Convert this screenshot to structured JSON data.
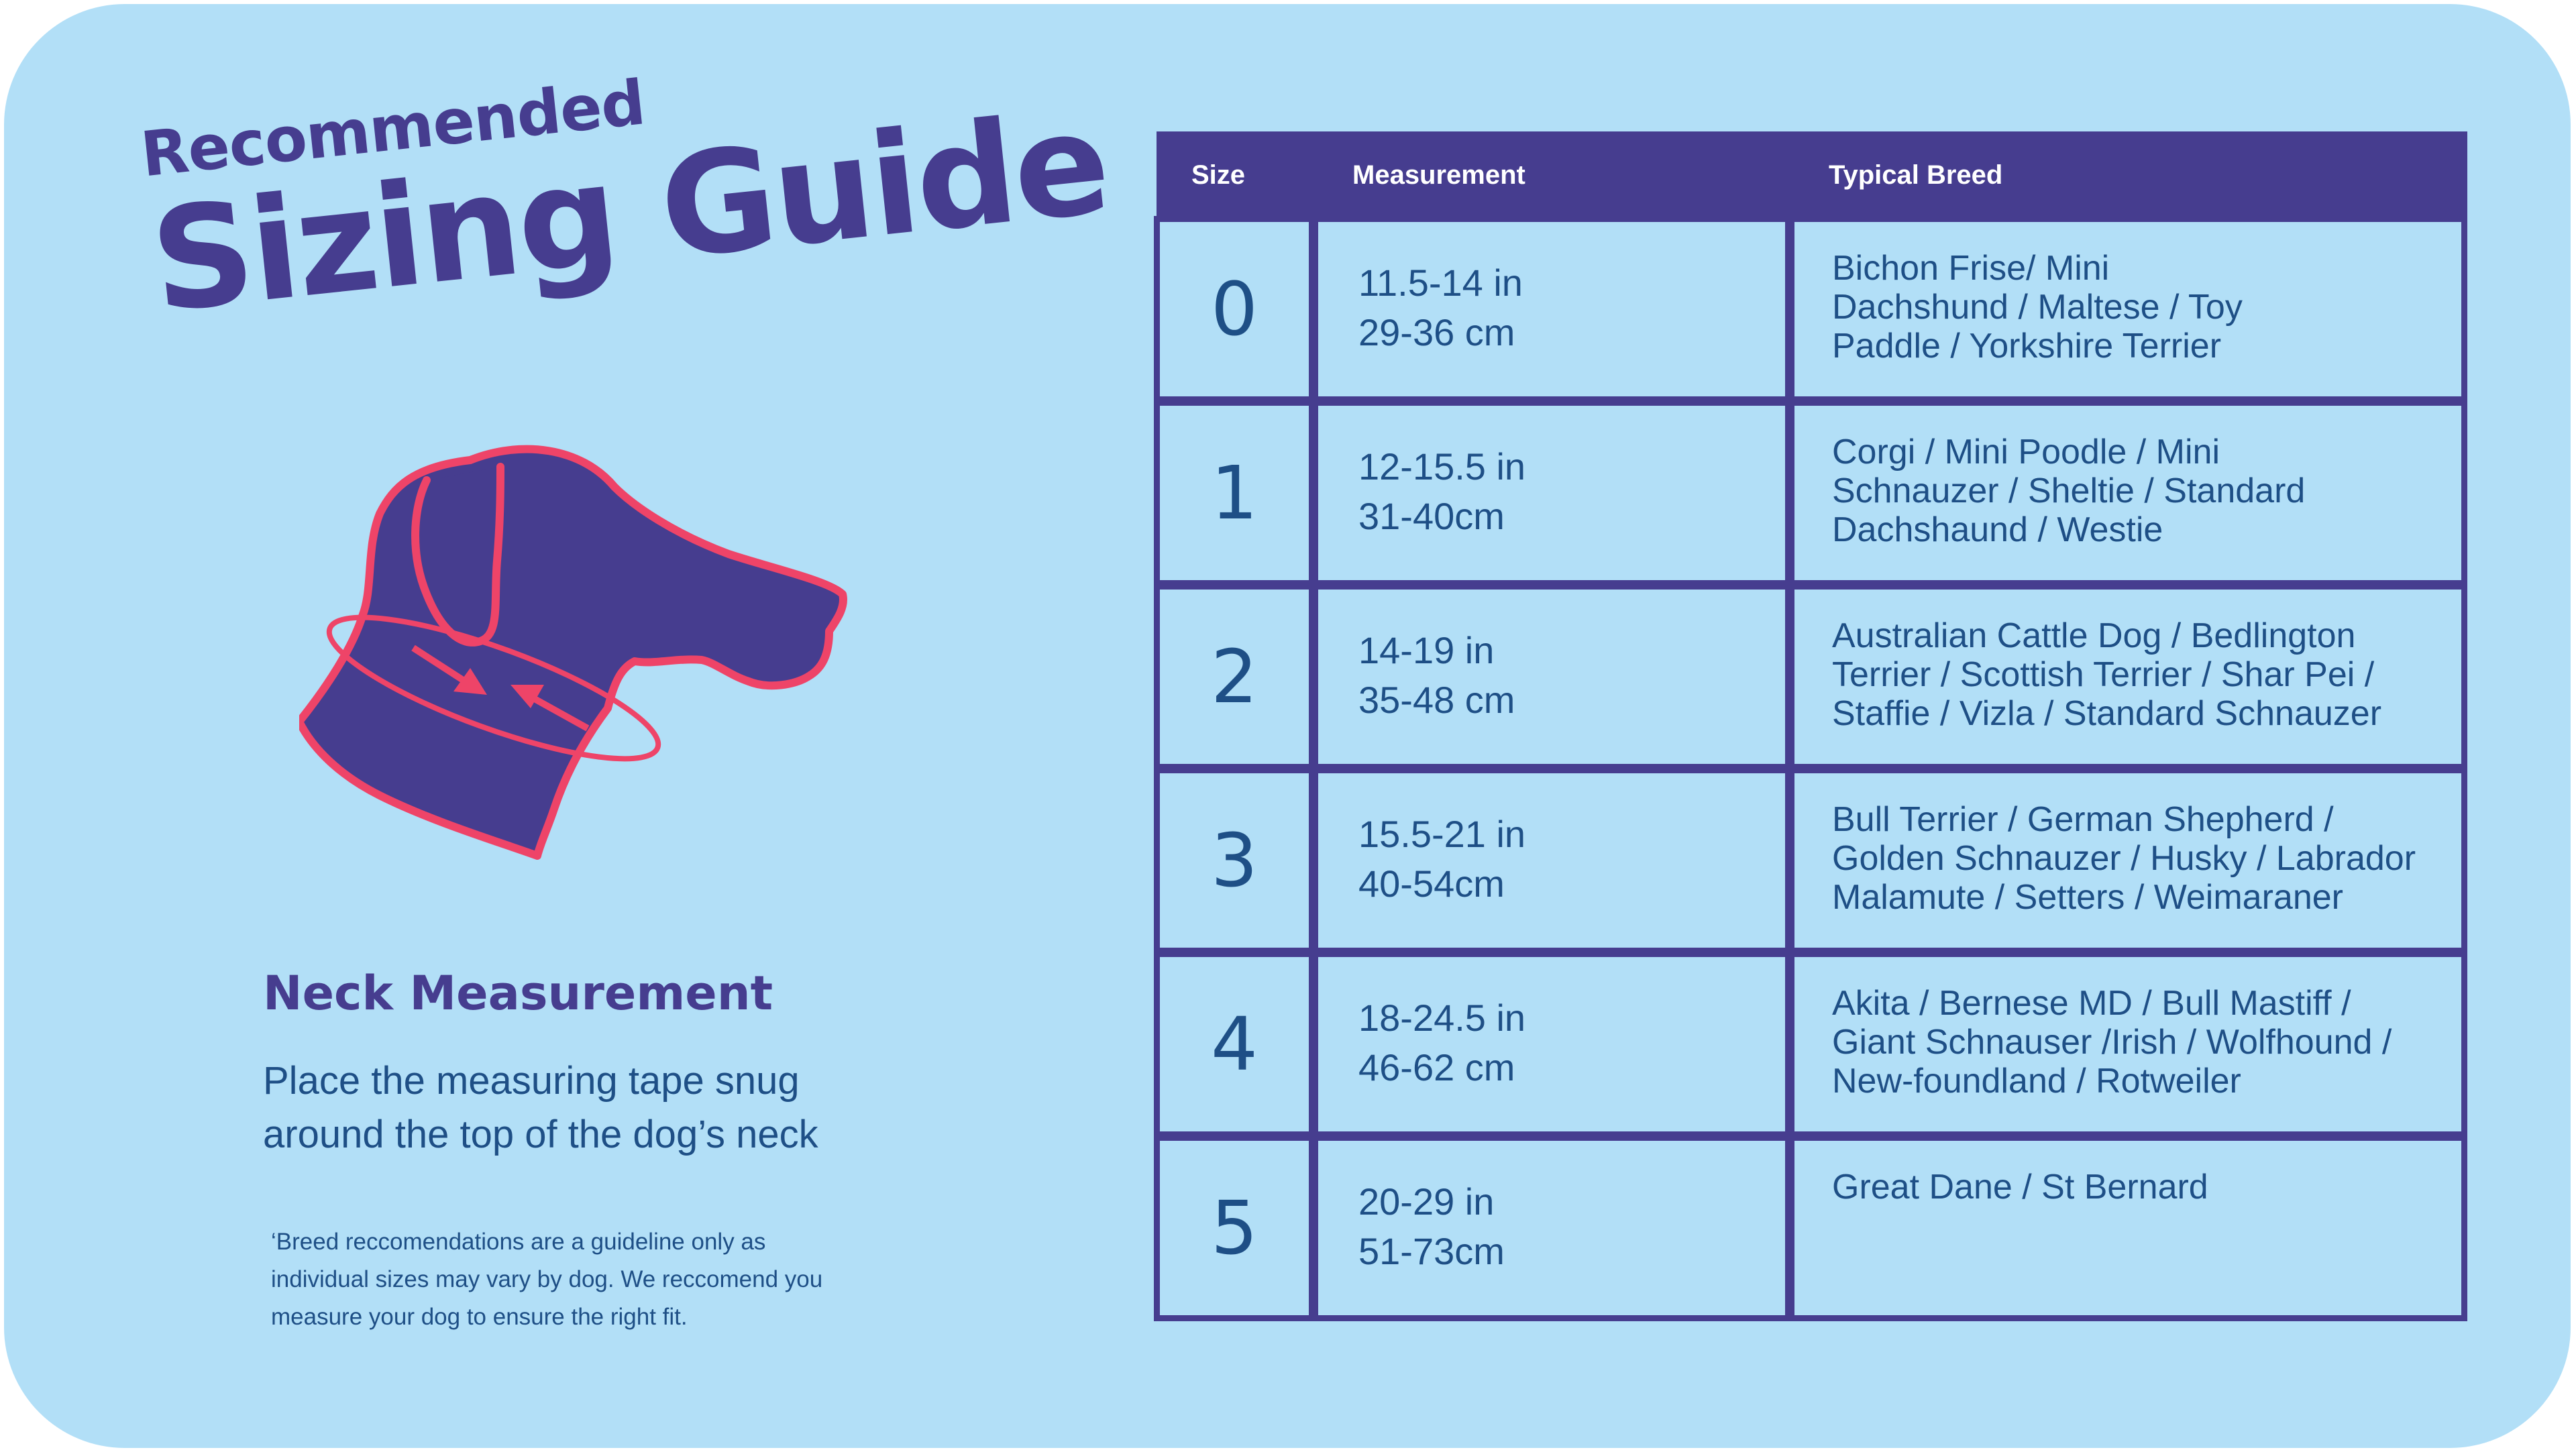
{
  "title": {
    "line1": "Recommended",
    "line2": "Sizing Guide"
  },
  "illustration": {
    "icon": "dog-head-with-measuring-tape-icon",
    "colors": {
      "fill": "#463d8f",
      "outline": "#ee4468"
    }
  },
  "neck": {
    "heading": "Neck Measurement",
    "line1": "Place the measuring tape snug",
    "line2": "around the top of the dog’s neck"
  },
  "footnote": {
    "line1": "‘Breed reccomendations are a guideline only as",
    "line2": "individual sizes may vary by dog. We reccomend you",
    "line3": "measure your dog to ensure the right fit."
  },
  "table": {
    "headers": {
      "size": "Size",
      "measurement": "Measurement",
      "breed": "Typical Breed"
    },
    "rows": [
      {
        "size": "0",
        "in": "11.5-14 in",
        "cm": "29-36 cm",
        "breed": [
          "Bichon Frise/ Mini",
          "Dachshund / Maltese / Toy",
          "Paddle / Yorkshire Terrier"
        ]
      },
      {
        "size": "1",
        "in": "12-15.5 in",
        "cm": "31-40cm",
        "breed": [
          "Corgi / Mini Poodle / Mini",
          "Schnauzer / Sheltie / Standard",
          "Dachshaund / Westie"
        ]
      },
      {
        "size": "2",
        "in": "14-19 in",
        "cm": "35-48 cm",
        "breed": [
          "Australian Cattle Dog / Bedlington",
          "Terrier / Scottish Terrier / Shar Pei /",
          "Staffie / Vizla / Standard Schnauzer"
        ]
      },
      {
        "size": "3",
        "in": "15.5-21 in",
        "cm": "40-54cm",
        "breed": [
          "Bull Terrier / German Shepherd /",
          "Golden Schnauzer / Husky / Labrador",
          "Malamute / Setters / Weimaraner"
        ]
      },
      {
        "size": "4",
        "in": "18-24.5 in",
        "cm": "46-62 cm",
        "breed": [
          "Akita / Bernese MD / Bull Mastiff /",
          "Giant Schnauser /Irish / Wolfhound /",
          "New-foundland / Rotweiler"
        ]
      },
      {
        "size": "5",
        "in": "20-29 in",
        "cm": "51-73cm",
        "breed": [
          "Great Dane / St Bernard",
          "",
          ""
        ]
      }
    ]
  },
  "colors": {
    "background": "#b2dff7",
    "primary": "#463d8f",
    "text": "#1e4f86",
    "accent": "#ee4468"
  }
}
